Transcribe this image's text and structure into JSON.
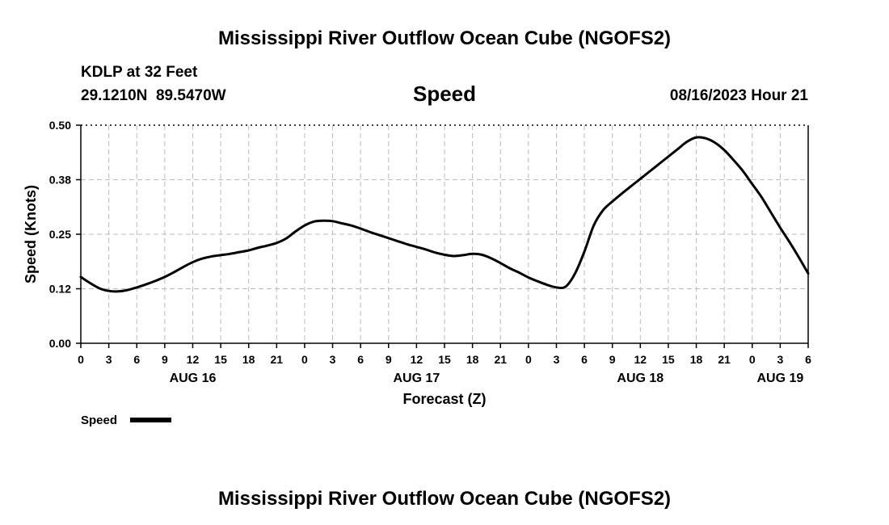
{
  "header": {
    "title_top": "Mississippi River Outflow Ocean Cube (NGOFS2)",
    "title_bottom": "Mississippi River Outflow Ocean Cube (NGOFS2)",
    "station": "KDLP at 32 Feet",
    "coords": "29.1210N  89.5470W",
    "variable": "Speed",
    "timestamp": "08/16/2023 Hour 21"
  },
  "legend": {
    "label": "Speed"
  },
  "chart_data": {
    "type": "line",
    "title": "Speed",
    "xlabel": "Forecast (Z)",
    "ylabel": "Speed (Knots)",
    "x_unit": "hours since 2023-08-16 00Z",
    "xlim": [
      0,
      78
    ],
    "ylim": [
      0,
      0.5
    ],
    "grid": true,
    "legend_position": "bottom-left",
    "y_ticks": [
      {
        "value": 0.0,
        "label": "0.00"
      },
      {
        "value": 0.125,
        "label": "0.12"
      },
      {
        "value": 0.25,
        "label": "0.25"
      },
      {
        "value": 0.375,
        "label": "0.38"
      },
      {
        "value": 0.5,
        "label": "0.50"
      }
    ],
    "x_ticks": [
      {
        "value": 0,
        "label": "0"
      },
      {
        "value": 3,
        "label": "3"
      },
      {
        "value": 6,
        "label": "6"
      },
      {
        "value": 9,
        "label": "9"
      },
      {
        "value": 12,
        "label": "12"
      },
      {
        "value": 15,
        "label": "15"
      },
      {
        "value": 18,
        "label": "18"
      },
      {
        "value": 21,
        "label": "21"
      },
      {
        "value": 24,
        "label": "0"
      },
      {
        "value": 27,
        "label": "3"
      },
      {
        "value": 30,
        "label": "6"
      },
      {
        "value": 33,
        "label": "9"
      },
      {
        "value": 36,
        "label": "12"
      },
      {
        "value": 39,
        "label": "15"
      },
      {
        "value": 42,
        "label": "18"
      },
      {
        "value": 45,
        "label": "21"
      },
      {
        "value": 48,
        "label": "0"
      },
      {
        "value": 51,
        "label": "3"
      },
      {
        "value": 54,
        "label": "6"
      },
      {
        "value": 57,
        "label": "9"
      },
      {
        "value": 60,
        "label": "12"
      },
      {
        "value": 63,
        "label": "15"
      },
      {
        "value": 66,
        "label": "18"
      },
      {
        "value": 69,
        "label": "21"
      },
      {
        "value": 72,
        "label": "0"
      },
      {
        "value": 75,
        "label": "3"
      },
      {
        "value": 78,
        "label": "6"
      }
    ],
    "date_labels": [
      {
        "value": 12,
        "label": "AUG 16"
      },
      {
        "value": 36,
        "label": "AUG 17"
      },
      {
        "value": 60,
        "label": "AUG 18"
      },
      {
        "value": 75,
        "label": "AUG 19"
      }
    ],
    "series": [
      {
        "name": "Speed",
        "x": [
          0,
          1,
          2,
          3,
          4,
          5,
          6,
          7,
          8,
          9,
          10,
          11,
          12,
          13,
          14,
          15,
          16,
          17,
          18,
          19,
          20,
          21,
          22,
          23,
          24,
          25,
          26,
          27,
          28,
          29,
          30,
          31,
          32,
          33,
          34,
          35,
          36,
          37,
          38,
          39,
          40,
          41,
          42,
          43,
          44,
          45,
          46,
          47,
          48,
          49,
          50,
          51,
          52,
          53,
          54,
          55,
          56,
          57,
          58,
          59,
          60,
          61,
          62,
          63,
          64,
          65,
          66,
          67,
          68,
          69,
          70,
          71,
          72,
          73,
          74,
          75,
          76,
          77,
          78
        ],
        "values": [
          0.152,
          0.138,
          0.126,
          0.12,
          0.119,
          0.122,
          0.128,
          0.135,
          0.143,
          0.152,
          0.163,
          0.175,
          0.186,
          0.194,
          0.199,
          0.202,
          0.205,
          0.209,
          0.213,
          0.219,
          0.224,
          0.23,
          0.24,
          0.256,
          0.27,
          0.279,
          0.281,
          0.28,
          0.275,
          0.27,
          0.263,
          0.255,
          0.248,
          0.241,
          0.234,
          0.227,
          0.221,
          0.215,
          0.208,
          0.203,
          0.2,
          0.202,
          0.205,
          0.203,
          0.195,
          0.184,
          0.172,
          0.162,
          0.151,
          0.142,
          0.134,
          0.128,
          0.13,
          0.16,
          0.21,
          0.27,
          0.305,
          0.325,
          0.343,
          0.36,
          0.377,
          0.394,
          0.411,
          0.428,
          0.445,
          0.462,
          0.472,
          0.47,
          0.46,
          0.443,
          0.42,
          0.395,
          0.365,
          0.335,
          0.3,
          0.265,
          0.232,
          0.197,
          0.16
        ]
      }
    ]
  }
}
